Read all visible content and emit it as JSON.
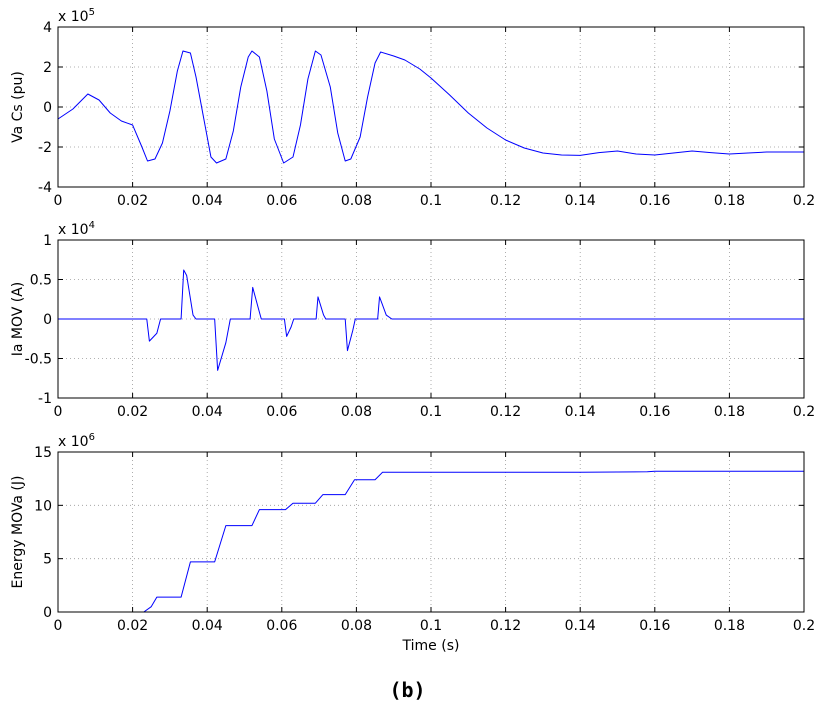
{
  "caption": "(b)",
  "colors": {
    "line": "#0000ff",
    "axis": "#000000",
    "grid": "#999999",
    "background": "#ffffff"
  },
  "chart_data": [
    {
      "type": "line",
      "ylabel": "Va Cs (pu)",
      "xlabel": "",
      "exponent_label": "x 10",
      "exponent": "5",
      "xlim": [
        0,
        0.2
      ],
      "ylim": [
        -4,
        4
      ],
      "xticks": [
        0,
        0.02,
        0.04,
        0.06,
        0.08,
        0.1,
        0.12,
        0.14,
        0.16,
        0.18,
        0.2
      ],
      "xtick_labels": [
        "0",
        "0.02",
        "0.04",
        "0.06",
        "0.08",
        "0.1",
        "0.12",
        "0.14",
        "0.16",
        "0.18",
        "0.2"
      ],
      "yticks": [
        -4,
        -2,
        0,
        2,
        4
      ],
      "ytick_labels": [
        "-4",
        "-2",
        "0",
        "2",
        "4"
      ],
      "grid": true,
      "series": [
        {
          "x": [
            0,
            0.004,
            0.008,
            0.011,
            0.014,
            0.017,
            0.02,
            0.0225,
            0.024,
            0.026,
            0.028,
            0.03,
            0.032,
            0.0335,
            0.0355,
            0.037,
            0.039,
            0.041,
            0.0425,
            0.045,
            0.047,
            0.049,
            0.051,
            0.052,
            0.054,
            0.056,
            0.058,
            0.0605,
            0.063,
            0.065,
            0.067,
            0.069,
            0.0705,
            0.073,
            0.075,
            0.077,
            0.0785,
            0.081,
            0.083,
            0.085,
            0.0865,
            0.09,
            0.093,
            0.097,
            0.1,
            0.105,
            0.11,
            0.115,
            0.12,
            0.125,
            0.13,
            0.135,
            0.14,
            0.145,
            0.15,
            0.155,
            0.16,
            0.165,
            0.17,
            0.175,
            0.18,
            0.185,
            0.19,
            0.195,
            0.2
          ],
          "values": [
            -0.6,
            -0.1,
            0.65,
            0.35,
            -0.3,
            -0.7,
            -0.9,
            -2.0,
            -2.7,
            -2.6,
            -1.8,
            -0.2,
            1.8,
            2.8,
            2.7,
            1.5,
            -0.5,
            -2.5,
            -2.8,
            -2.6,
            -1.2,
            1.0,
            2.5,
            2.8,
            2.5,
            0.8,
            -1.6,
            -2.8,
            -2.5,
            -0.9,
            1.4,
            2.8,
            2.6,
            1.0,
            -1.3,
            -2.7,
            -2.6,
            -1.5,
            0.5,
            2.2,
            2.75,
            2.55,
            2.35,
            1.9,
            1.45,
            0.6,
            -0.3,
            -1.05,
            -1.65,
            -2.05,
            -2.3,
            -2.4,
            -2.42,
            -2.28,
            -2.2,
            -2.35,
            -2.4,
            -2.3,
            -2.2,
            -2.28,
            -2.35,
            -2.3,
            -2.25,
            -2.25,
            -2.25
          ]
        }
      ]
    },
    {
      "type": "line",
      "ylabel": "Ia MOV (A)",
      "xlabel": "",
      "exponent_label": "x 10",
      "exponent": "4",
      "xlim": [
        0,
        0.2
      ],
      "ylim": [
        -1,
        1
      ],
      "xticks": [
        0,
        0.02,
        0.04,
        0.06,
        0.08,
        0.1,
        0.12,
        0.14,
        0.16,
        0.18,
        0.2
      ],
      "xtick_labels": [
        "0",
        "0.02",
        "0.04",
        "0.06",
        "0.08",
        "0.1",
        "0.12",
        "0.14",
        "0.16",
        "0.18",
        "0.2"
      ],
      "yticks": [
        -1,
        -0.5,
        0,
        0.5,
        1
      ],
      "ytick_labels": [
        "-1",
        "-0.5",
        "0",
        "0.5",
        "1"
      ],
      "grid": true,
      "series": [
        {
          "x": [
            0,
            0.0238,
            0.0245,
            0.0265,
            0.0275,
            0.033,
            0.0337,
            0.0345,
            0.0362,
            0.037,
            0.042,
            0.0428,
            0.045,
            0.0462,
            0.0515,
            0.0522,
            0.0538,
            0.0545,
            0.0607,
            0.0613,
            0.0625,
            0.0632,
            0.0692,
            0.0697,
            0.0712,
            0.0718,
            0.077,
            0.0776,
            0.079,
            0.0797,
            0.0857,
            0.0862,
            0.088,
            0.0895,
            0.2
          ],
          "values": [
            0,
            0,
            -0.28,
            -0.18,
            0,
            0,
            0.62,
            0.55,
            0.05,
            0,
            0,
            -0.65,
            -0.3,
            0,
            0,
            0.4,
            0.12,
            0,
            0,
            -0.22,
            -0.1,
            0,
            0,
            0.28,
            0.05,
            0,
            0,
            -0.4,
            -0.15,
            0,
            0,
            0.28,
            0.05,
            0,
            0
          ]
        }
      ]
    },
    {
      "type": "line",
      "ylabel": "Energy MOVa (J)",
      "xlabel": "Time (s)",
      "exponent_label": "x 10",
      "exponent": "6",
      "xlim": [
        0,
        0.2
      ],
      "ylim": [
        0,
        15
      ],
      "xticks": [
        0,
        0.02,
        0.04,
        0.06,
        0.08,
        0.1,
        0.12,
        0.14,
        0.16,
        0.18,
        0.2
      ],
      "xtick_labels": [
        "0",
        "0.02",
        "0.04",
        "0.06",
        "0.08",
        "0.1",
        "0.12",
        "0.14",
        "0.16",
        "0.18",
        "0.2"
      ],
      "yticks": [
        0,
        5,
        10,
        15
      ],
      "ytick_labels": [
        "0",
        "5",
        "10",
        "15"
      ],
      "grid": true,
      "series": [
        {
          "x": [
            0,
            0.023,
            0.025,
            0.0265,
            0.033,
            0.0355,
            0.042,
            0.045,
            0.052,
            0.054,
            0.061,
            0.063,
            0.069,
            0.071,
            0.077,
            0.0795,
            0.085,
            0.087,
            0.1,
            0.12,
            0.14,
            0.158,
            0.16,
            0.2
          ],
          "values": [
            0,
            0,
            0.5,
            1.4,
            1.4,
            4.7,
            4.7,
            8.1,
            8.1,
            9.6,
            9.6,
            10.2,
            10.2,
            11.0,
            11.0,
            12.4,
            12.4,
            13.1,
            13.1,
            13.1,
            13.1,
            13.15,
            13.2,
            13.2
          ]
        }
      ]
    }
  ]
}
